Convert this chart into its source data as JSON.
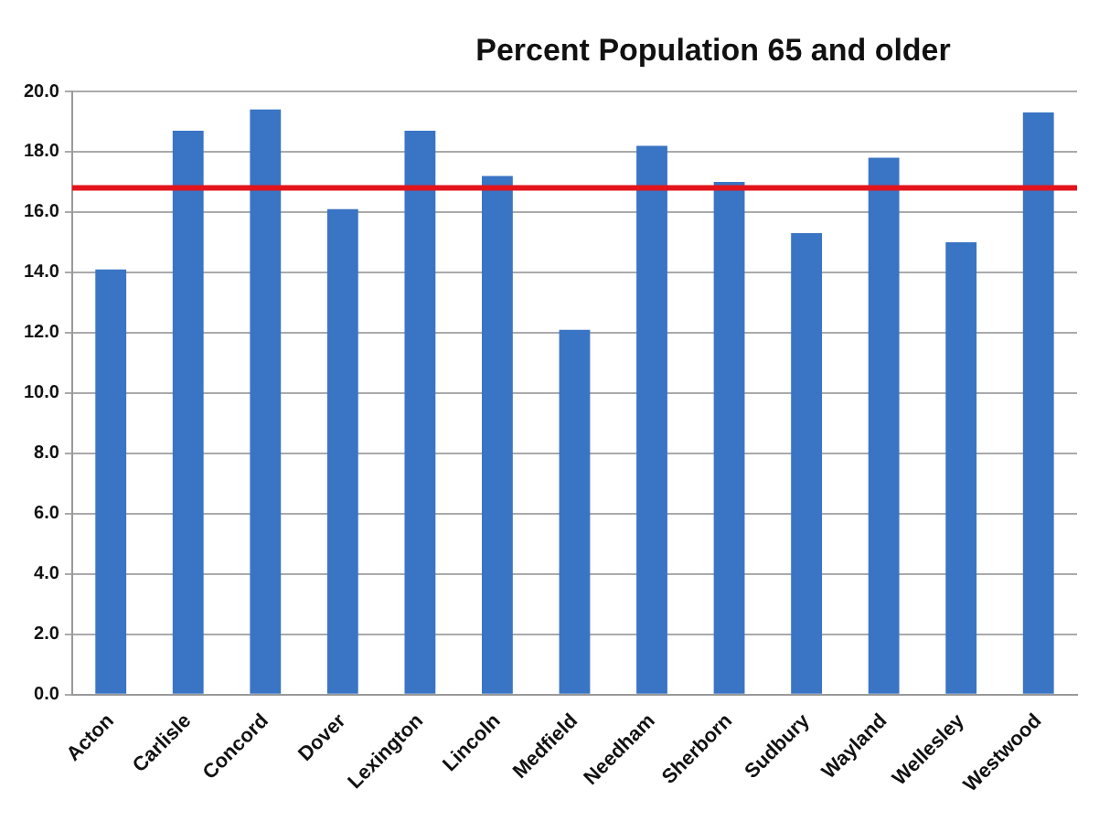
{
  "chart_data": {
    "type": "bar",
    "title": "Percent Population 65 and older",
    "categories": [
      "Acton",
      "Carlisle",
      "Concord",
      "Dover",
      "Lexington",
      "Lincoln",
      "Medfield",
      "Needham",
      "Sherborn",
      "Sudbury",
      "Wayland",
      "Wellesley",
      "Westwood"
    ],
    "values": [
      14.1,
      18.7,
      19.4,
      16.1,
      18.7,
      17.2,
      12.1,
      18.2,
      17.0,
      15.3,
      17.8,
      15.0,
      19.3
    ],
    "color": "#3a74c4",
    "ylim": [
      0,
      20
    ],
    "yticks": [
      {
        "value": 0,
        "label": "0.0"
      },
      {
        "value": 2,
        "label": "2.0"
      },
      {
        "value": 4,
        "label": "4.0"
      },
      {
        "value": 6,
        "label": "6.0"
      },
      {
        "value": 8,
        "label": "8.0"
      },
      {
        "value": 10,
        "label": "10.0"
      },
      {
        "value": 12,
        "label": "12.0"
      },
      {
        "value": 14,
        "label": "14.0"
      },
      {
        "value": 16,
        "label": "16.0"
      },
      {
        "value": 18,
        "label": "18.0"
      },
      {
        "value": 20,
        "label": "20.0"
      }
    ],
    "grid": "y",
    "ref_lines": [
      {
        "axis": "y",
        "value": 16.8,
        "color": "#e3141b"
      }
    ]
  }
}
